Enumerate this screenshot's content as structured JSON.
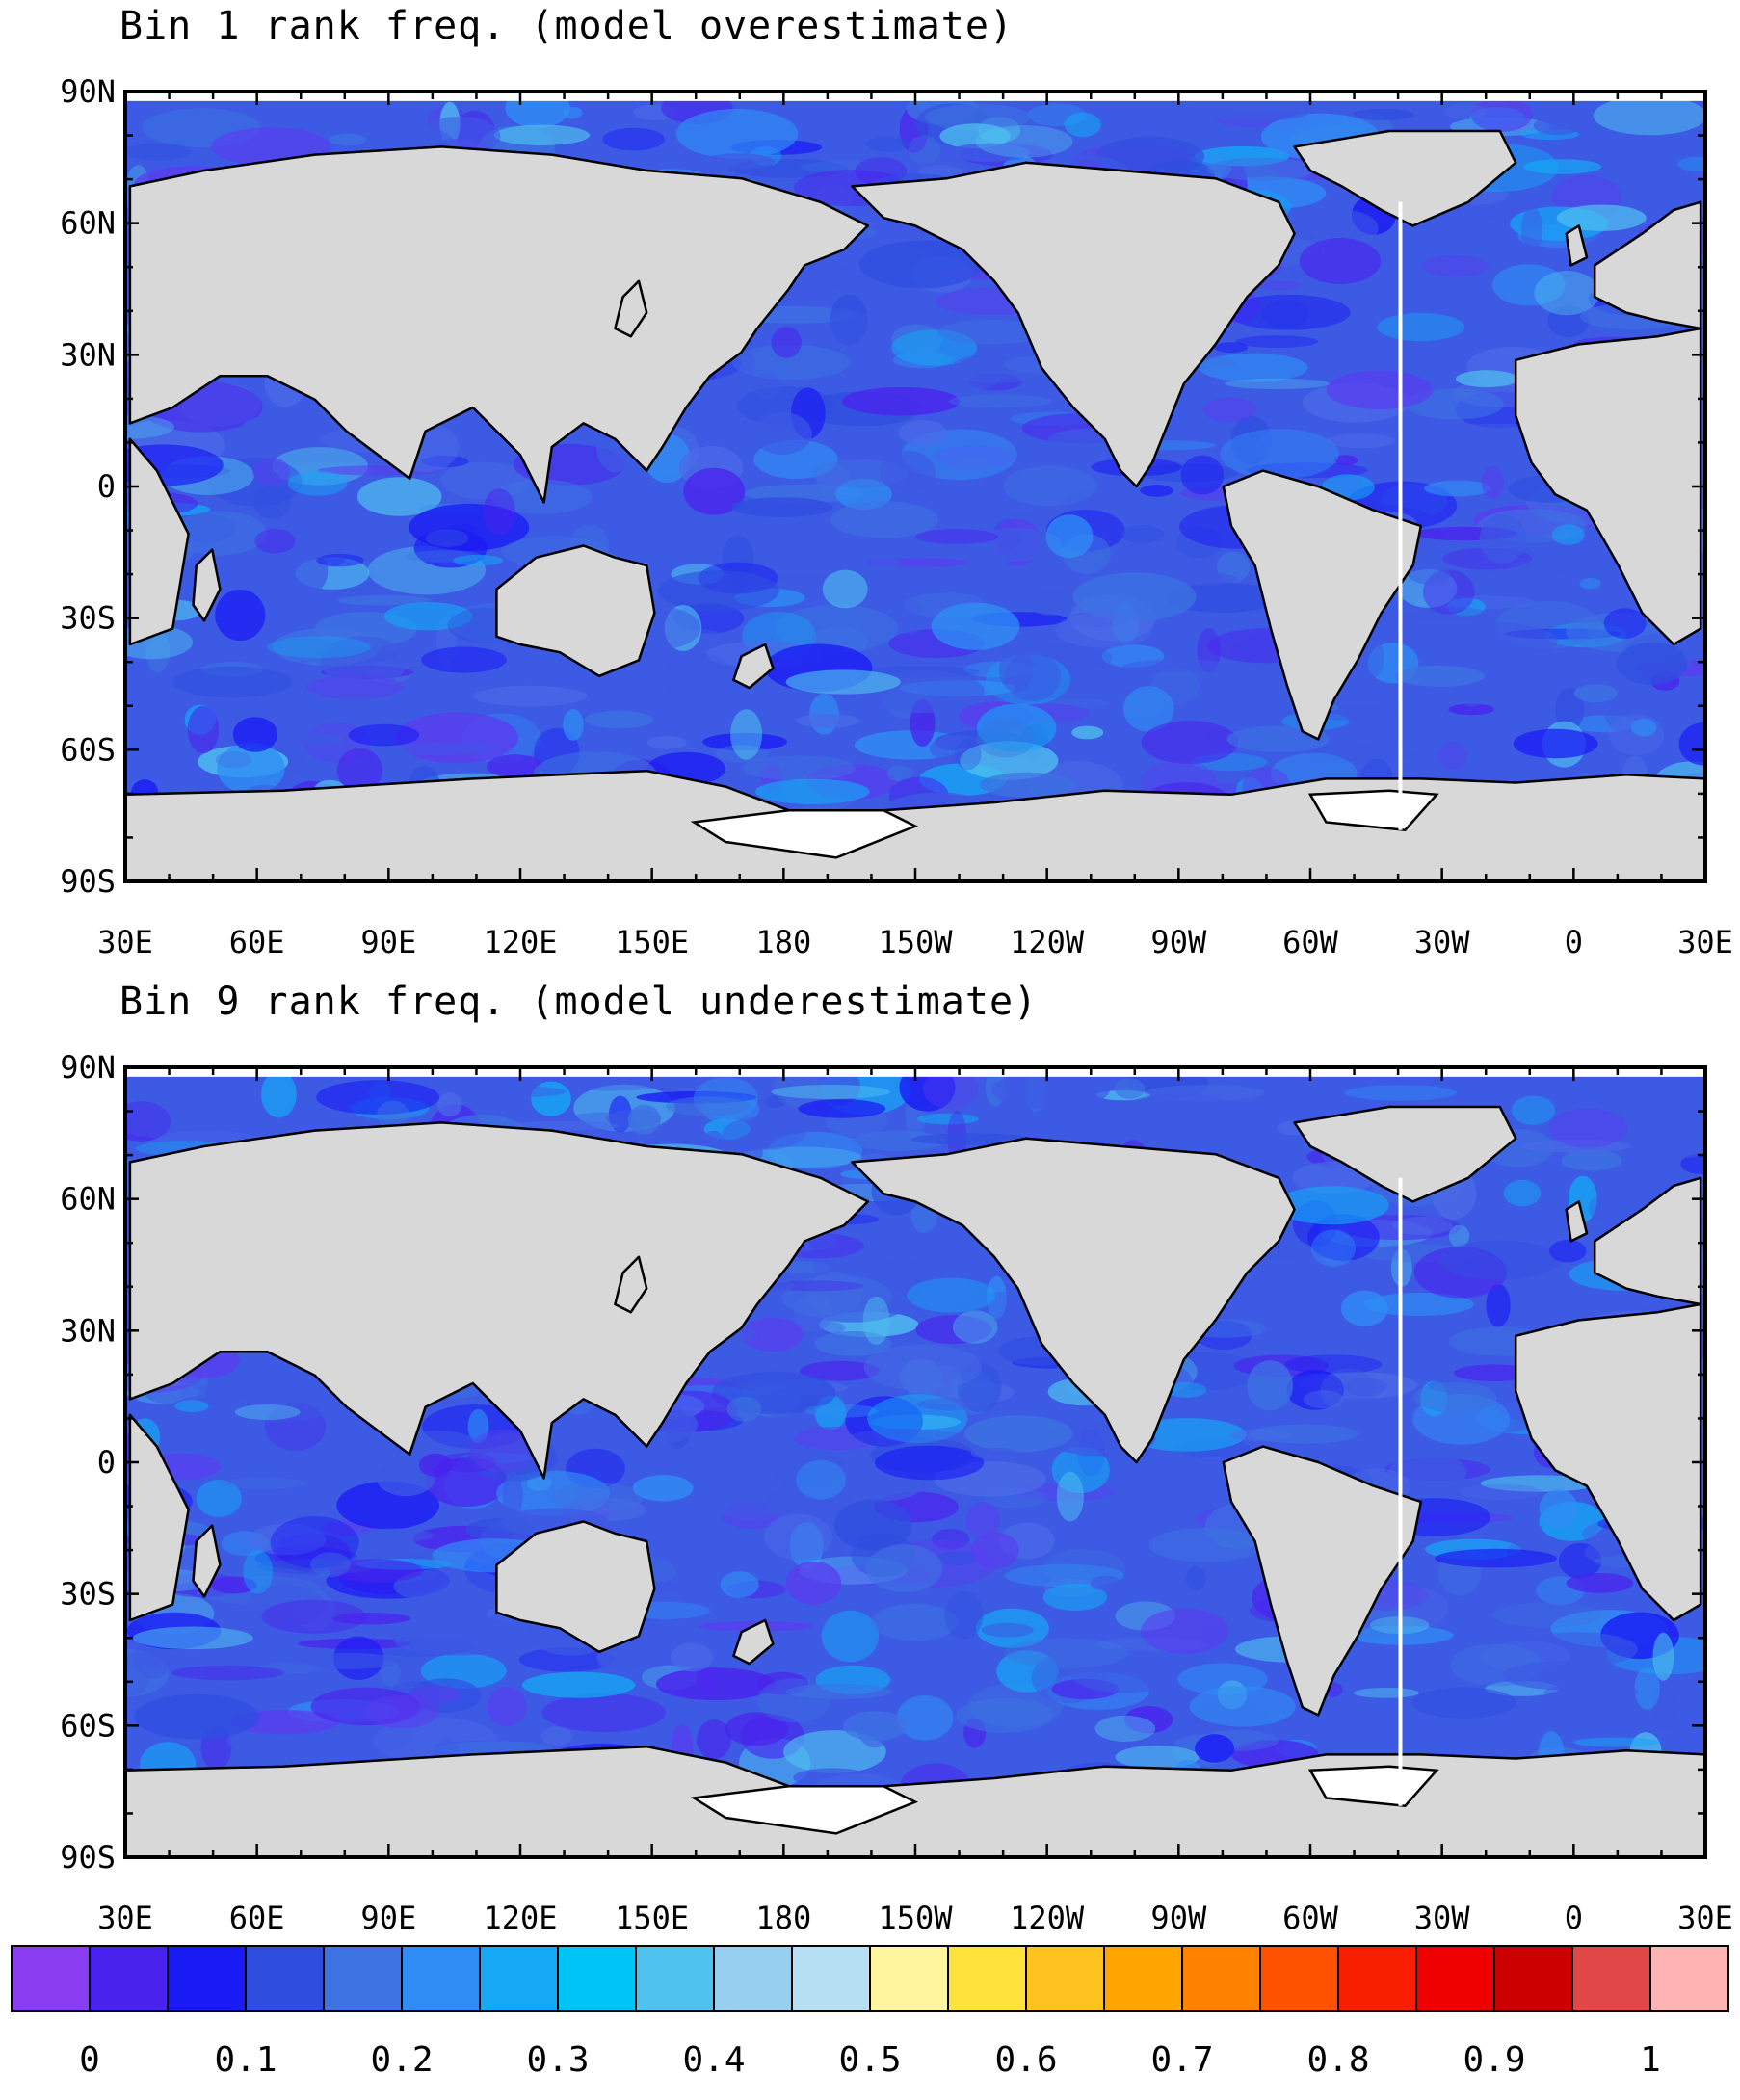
{
  "panels": [
    {
      "title": "Bin 1 rank freq. (model overestimate)",
      "pattern_seed": 11
    },
    {
      "title": "Bin 9 rank freq. (model underestimate)",
      "pattern_seed": 29
    }
  ],
  "lat_labels": [
    "90N",
    "60N",
    "30N",
    "0",
    "30S",
    "60S",
    "90S"
  ],
  "lon_labels": [
    "30E",
    "60E",
    "90E",
    "120E",
    "150E",
    "180",
    "150W",
    "120W",
    "90W",
    "60W",
    "30W",
    "0",
    "30E"
  ],
  "colorbar": {
    "labels": [
      "0",
      "0.1",
      "0.2",
      "0.3",
      "0.4",
      "0.5",
      "0.6",
      "0.7",
      "0.8",
      "0.9",
      "1"
    ],
    "colors": [
      "#8a3cf0",
      "#4a22ee",
      "#1a1af5",
      "#2f4ee0",
      "#3d72e2",
      "#2f8ef5",
      "#14a8f5",
      "#00c4f5",
      "#4fc2ef",
      "#96cff0",
      "#b8e0f4",
      "#fff59e",
      "#ffe23c",
      "#ffc21e",
      "#ffa600",
      "#ff8200",
      "#ff5200",
      "#f81e00",
      "#ee0000",
      "#cc0000",
      "#e04848",
      "#ffb4b4"
    ]
  },
  "map_colors": {
    "land": "#d8d8d8",
    "ice_shelf": "#ffffff",
    "coast": "#000000",
    "ocean_base": "#3d5ae4"
  }
}
